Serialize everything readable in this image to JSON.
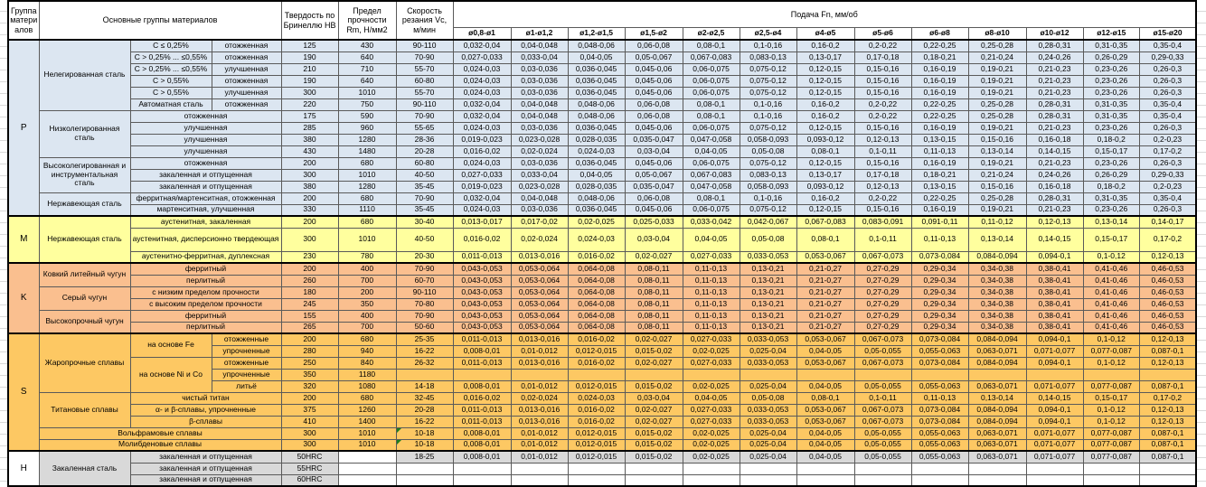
{
  "header": {
    "group": "Группа материалов",
    "materials": "Основные группы материалов",
    "hardness": "Твердость по Бринеллю HB",
    "strength": "Предел прочности Rm, Н/мм2",
    "speed": "Скорость резания Vc, м/мин",
    "feed": "Подача Fn, мм/об",
    "diameters": [
      "ø0,8-ø1",
      "ø1-ø1,2",
      "ø1,2-ø1,5",
      "ø1,5-ø2",
      "ø2-ø2,5",
      "ø2,5-ø4",
      "ø4-ø5",
      "ø5-ø6",
      "ø6-ø8",
      "ø8-ø10",
      "ø10-ø12",
      "ø12-ø15",
      "ø15-ø20"
    ]
  },
  "colors": {
    "group_p": "#dce6f1",
    "group_m": "#ffff9e",
    "group_k": "#fabf8f",
    "group_s": "#fdc863",
    "group_h": "#d9d9d9",
    "comment_indicator": "#1e7e1e"
  },
  "feed_sets": {
    "A": [
      "0,032-0,04",
      "0,04-0,048",
      "0,048-0,06",
      "0,06-0,08",
      "0,08-0,1",
      "0,1-0,16",
      "0,16-0,2",
      "0,2-0,22",
      "0,22-0,25",
      "0,25-0,28",
      "0,28-0,31",
      "0,31-0,35",
      "0,35-0,4"
    ],
    "B": [
      "0,027-0,033",
      "0,033-0,04",
      "0,04-0,05",
      "0,05-0,067",
      "0,067-0,083",
      "0,083-0,13",
      "0,13-0,17",
      "0,17-0,18",
      "0,18-0,21",
      "0,21-0,24",
      "0,24-0,26",
      "0,26-0,29",
      "0,29-0,33"
    ],
    "C": [
      "0,024-0,03",
      "0,03-0,036",
      "0,036-0,045",
      "0,045-0,06",
      "0,06-0,075",
      "0,075-0,12",
      "0,12-0,15",
      "0,15-0,16",
      "0,16-0,19",
      "0,19-0,21",
      "0,21-0,23",
      "0,23-0,26",
      "0,26-0,3"
    ],
    "D": [
      "0,019-0,023",
      "0,023-0,028",
      "0,028-0,035",
      "0,035-0,047",
      "0,047-0,058",
      "0,058-0,093",
      "0,093-0,12",
      "0,12-0,13",
      "0,13-0,15",
      "0,15-0,16",
      "0,16-0,18",
      "0,18-0,2",
      "0,2-0,23"
    ],
    "E": [
      "0,016-0,02",
      "0,02-0,024",
      "0,024-0,03",
      "0,03-0,04",
      "0,04-0,05",
      "0,05-0,08",
      "0,08-0,1",
      "0,1-0,11",
      "0,11-0,13",
      "0,13-0,14",
      "0,14-0,15",
      "0,15-0,17",
      "0,17-0,2"
    ],
    "M1": [
      "0,013-0,017",
      "0,017-0,02",
      "0,02-0,025",
      "0,025-0,033",
      "0,033-0,042",
      "0,042-0,067",
      "0,067-0,083",
      "0,083-0,091",
      "0,091-0,11",
      "0,11-0,12",
      "0,12-0,13",
      "0,13-0,14",
      "0,14-0,17"
    ],
    "S1": [
      "0,011-0,013",
      "0,013-0,016",
      "0,016-0,02",
      "0,02-0,027",
      "0,027-0,033",
      "0,033-0,053",
      "0,053-0,067",
      "0,067-0,073",
      "0,073-0,084",
      "0,084-0,094",
      "0,094-0,1",
      "0,1-0,12",
      "0,12-0,13"
    ],
    "S2": [
      "0,008-0,01",
      "0,01-0,012",
      "0,012-0,015",
      "0,015-0,02",
      "0,02-0,025",
      "0,025-0,04",
      "0,04-0,05",
      "0,05-0,055",
      "0,055-0,063",
      "0,063-0,071",
      "0,071-0,077",
      "0,077-0,087",
      "0,087-0,1"
    ],
    "K": [
      "0,043-0,053",
      "0,053-0,064",
      "0,064-0,08",
      "0,08-0,11",
      "0,11-0,13",
      "0,13-0,21",
      "0,21-0,27",
      "0,27-0,29",
      "0,29-0,34",
      "0,34-0,38",
      "0,38-0,41",
      "0,41-0,46",
      "0,46-0,53"
    ],
    "EMPTY": [
      "",
      "",
      "",
      "",
      "",
      "",
      "",
      "",
      "",
      "",
      "",
      "",
      ""
    ]
  },
  "groups": [
    {
      "letter": "P",
      "key": "p",
      "families": [
        {
          "name": "Нелегированная сталь",
          "rows": [
            {
              "sub": "C ≤ 0,25%",
              "cond": "отожженная",
              "hb": "125",
              "rm": "430",
              "vc": "90-110",
              "f": "A"
            },
            {
              "sub": "C > 0,25% ... ≤0,55%",
              "cond": "отожженная",
              "hb": "190",
              "rm": "640",
              "vc": "70-90",
              "f": "B"
            },
            {
              "sub": "C > 0,25% ... ≤0,55%",
              "cond": "улучшенная",
              "hb": "210",
              "rm": "710",
              "vc": "55-70",
              "f": "C"
            },
            {
              "sub": "C > 0,55%",
              "cond": "отожженная",
              "hb": "190",
              "rm": "640",
              "vc": "60-80",
              "f": "C"
            },
            {
              "sub": "C > 0,55%",
              "cond": "улучшенная",
              "hb": "300",
              "rm": "1010",
              "vc": "55-70",
              "f": "C"
            },
            {
              "sub": "Автоматная сталь",
              "cond": "отожженная",
              "hb": "220",
              "rm": "750",
              "vc": "90-110",
              "f": "A"
            }
          ]
        },
        {
          "name": "Низколегированная сталь",
          "rows": [
            {
              "cond_full": "отожженная",
              "hb": "175",
              "rm": "590",
              "vc": "70-90",
              "f": "A"
            },
            {
              "cond_full": "улучшенная",
              "hb": "285",
              "rm": "960",
              "vc": "55-65",
              "f": "C"
            },
            {
              "cond_full": "улучшенная",
              "hb": "380",
              "rm": "1280",
              "vc": "28-36",
              "f": "D"
            },
            {
              "cond_full": "улучшенная",
              "hb": "430",
              "rm": "1480",
              "vc": "20-28",
              "f": "E"
            }
          ]
        },
        {
          "name": "Высоколегированная и инструментальная сталь",
          "rows": [
            {
              "cond_full": "отожженная",
              "hb": "200",
              "rm": "680",
              "vc": "60-80",
              "f": "C"
            },
            {
              "cond_full": "закаленная и отпущенная",
              "hb": "300",
              "rm": "1010",
              "vc": "40-50",
              "f": "B"
            },
            {
              "cond_full": "закаленная и отпущенная",
              "hb": "380",
              "rm": "1280",
              "vc": "35-45",
              "f": "D"
            }
          ]
        },
        {
          "name": "Нержавеющая сталь",
          "rows": [
            {
              "cond_full": "ферритная/мартенситная, отожженная",
              "hb": "200",
              "rm": "680",
              "vc": "70-90",
              "f": "A"
            },
            {
              "cond_full": "мартенситная, улучшенная",
              "hb": "330",
              "rm": "1110",
              "vc": "35-45",
              "f": "C"
            }
          ]
        }
      ]
    },
    {
      "letter": "M",
      "key": "m",
      "families": [
        {
          "name": "Нержавеющая сталь",
          "rows": [
            {
              "cond_full": "аустенитная, закаленная",
              "hb": "200",
              "rm": "680",
              "vc": "30-40",
              "f": "M1"
            },
            {
              "cond_full": "аустенитная, дисперсионно твердеющая",
              "hb": "300",
              "rm": "1010",
              "vc": "40-50",
              "f": "E",
              "h2": true
            },
            {
              "cond_full": "аустенитно-ферритная, дуплексная",
              "hb": "230",
              "rm": "780",
              "vc": "20-30",
              "f": "S1"
            }
          ]
        }
      ]
    },
    {
      "letter": "K",
      "key": "k",
      "families": [
        {
          "name": "Ковкий литейный чугун",
          "rows": [
            {
              "cond_full": "ферритный",
              "hb": "200",
              "rm": "400",
              "vc": "70-90",
              "f": "K"
            },
            {
              "cond_full": "перлитный",
              "hb": "260",
              "rm": "700",
              "vc": "60-70",
              "f": "K"
            }
          ]
        },
        {
          "name": "Серый чугун",
          "rows": [
            {
              "cond_full": "с низким пределом прочности",
              "hb": "180",
              "rm": "200",
              "vc": "90-110",
              "f": "K"
            },
            {
              "cond_full": "с высоким пределом прочности",
              "hb": "245",
              "rm": "350",
              "vc": "70-80",
              "f": "K"
            }
          ]
        },
        {
          "name": "Высокопрочный чугун",
          "rows": [
            {
              "cond_full": "ферритный",
              "hb": "155",
              "rm": "400",
              "vc": "70-90",
              "f": "K"
            },
            {
              "cond_full": "перлитный",
              "hb": "265",
              "rm": "700",
              "vc": "50-60",
              "f": "K"
            }
          ]
        }
      ]
    },
    {
      "letter": "S",
      "key": "s",
      "families": [
        {
          "name": "Жаропрочные сплавы",
          "rows": [
            {
              "sub": "на основе Fe",
              "sub_rs": 2,
              "cond": "отожженные",
              "hb": "200",
              "rm": "680",
              "vc": "25-35",
              "f": "S1"
            },
            {
              "cond": "упрочненные",
              "hb": "280",
              "rm": "940",
              "vc": "16-22",
              "f": "S2"
            },
            {
              "sub": "на основе Ni и Co",
              "sub_rs": 3,
              "cond": "отожженные",
              "hb": "250",
              "rm": "840",
              "vc": "26-32",
              "f": "S1"
            },
            {
              "cond": "упрочненные",
              "hb": "350",
              "rm": "1180",
              "vc": "",
              "f": "EMPTY"
            },
            {
              "cond": "литьё",
              "hb": "320",
              "rm": "1080",
              "vc": "14-18",
              "f": "S2"
            }
          ]
        },
        {
          "name": "Титановые сплавы",
          "rows": [
            {
              "cond_full": "чистый титан",
              "hb": "200",
              "rm": "680",
              "vc": "32-45",
              "f": "E"
            },
            {
              "cond_full": "α- и β-сплавы, упрочненные",
              "hb": "375",
              "rm": "1260",
              "vc": "20-28",
              "f": "S1"
            },
            {
              "cond_full": "β-сплавы",
              "hb": "410",
              "rm": "1400",
              "vc": "16-22",
              "f": "S1"
            }
          ]
        },
        {
          "name": "Вольфрамовые сплавы",
          "span_all": true,
          "rows": [
            {
              "hb": "300",
              "rm": "1010",
              "vc": "10-18",
              "f": "S2",
              "tri": true
            }
          ]
        },
        {
          "name": "Молибденовые сплавы",
          "span_all": true,
          "rows": [
            {
              "hb": "300",
              "rm": "1010",
              "vc": "10-18",
              "f": "S2",
              "tri": true
            }
          ]
        }
      ]
    },
    {
      "letter": "H",
      "key": "h",
      "letter_white": true,
      "families": [
        {
          "name": "Закаленная сталь",
          "rows": [
            {
              "cond_full": "закаленная и отпущенная",
              "hb": "50HRC",
              "rm": "",
              "vc": "18-25",
              "f": "S2"
            },
            {
              "cond_full": "закаленная и отпущенная",
              "hb": "55HRC",
              "rm": "",
              "vc": "",
              "f": "EMPTY"
            },
            {
              "cond_full": "закаленная и отпущенная",
              "hb": "60HRC",
              "rm": "",
              "vc": "",
              "f": "EMPTY"
            }
          ]
        }
      ]
    }
  ]
}
